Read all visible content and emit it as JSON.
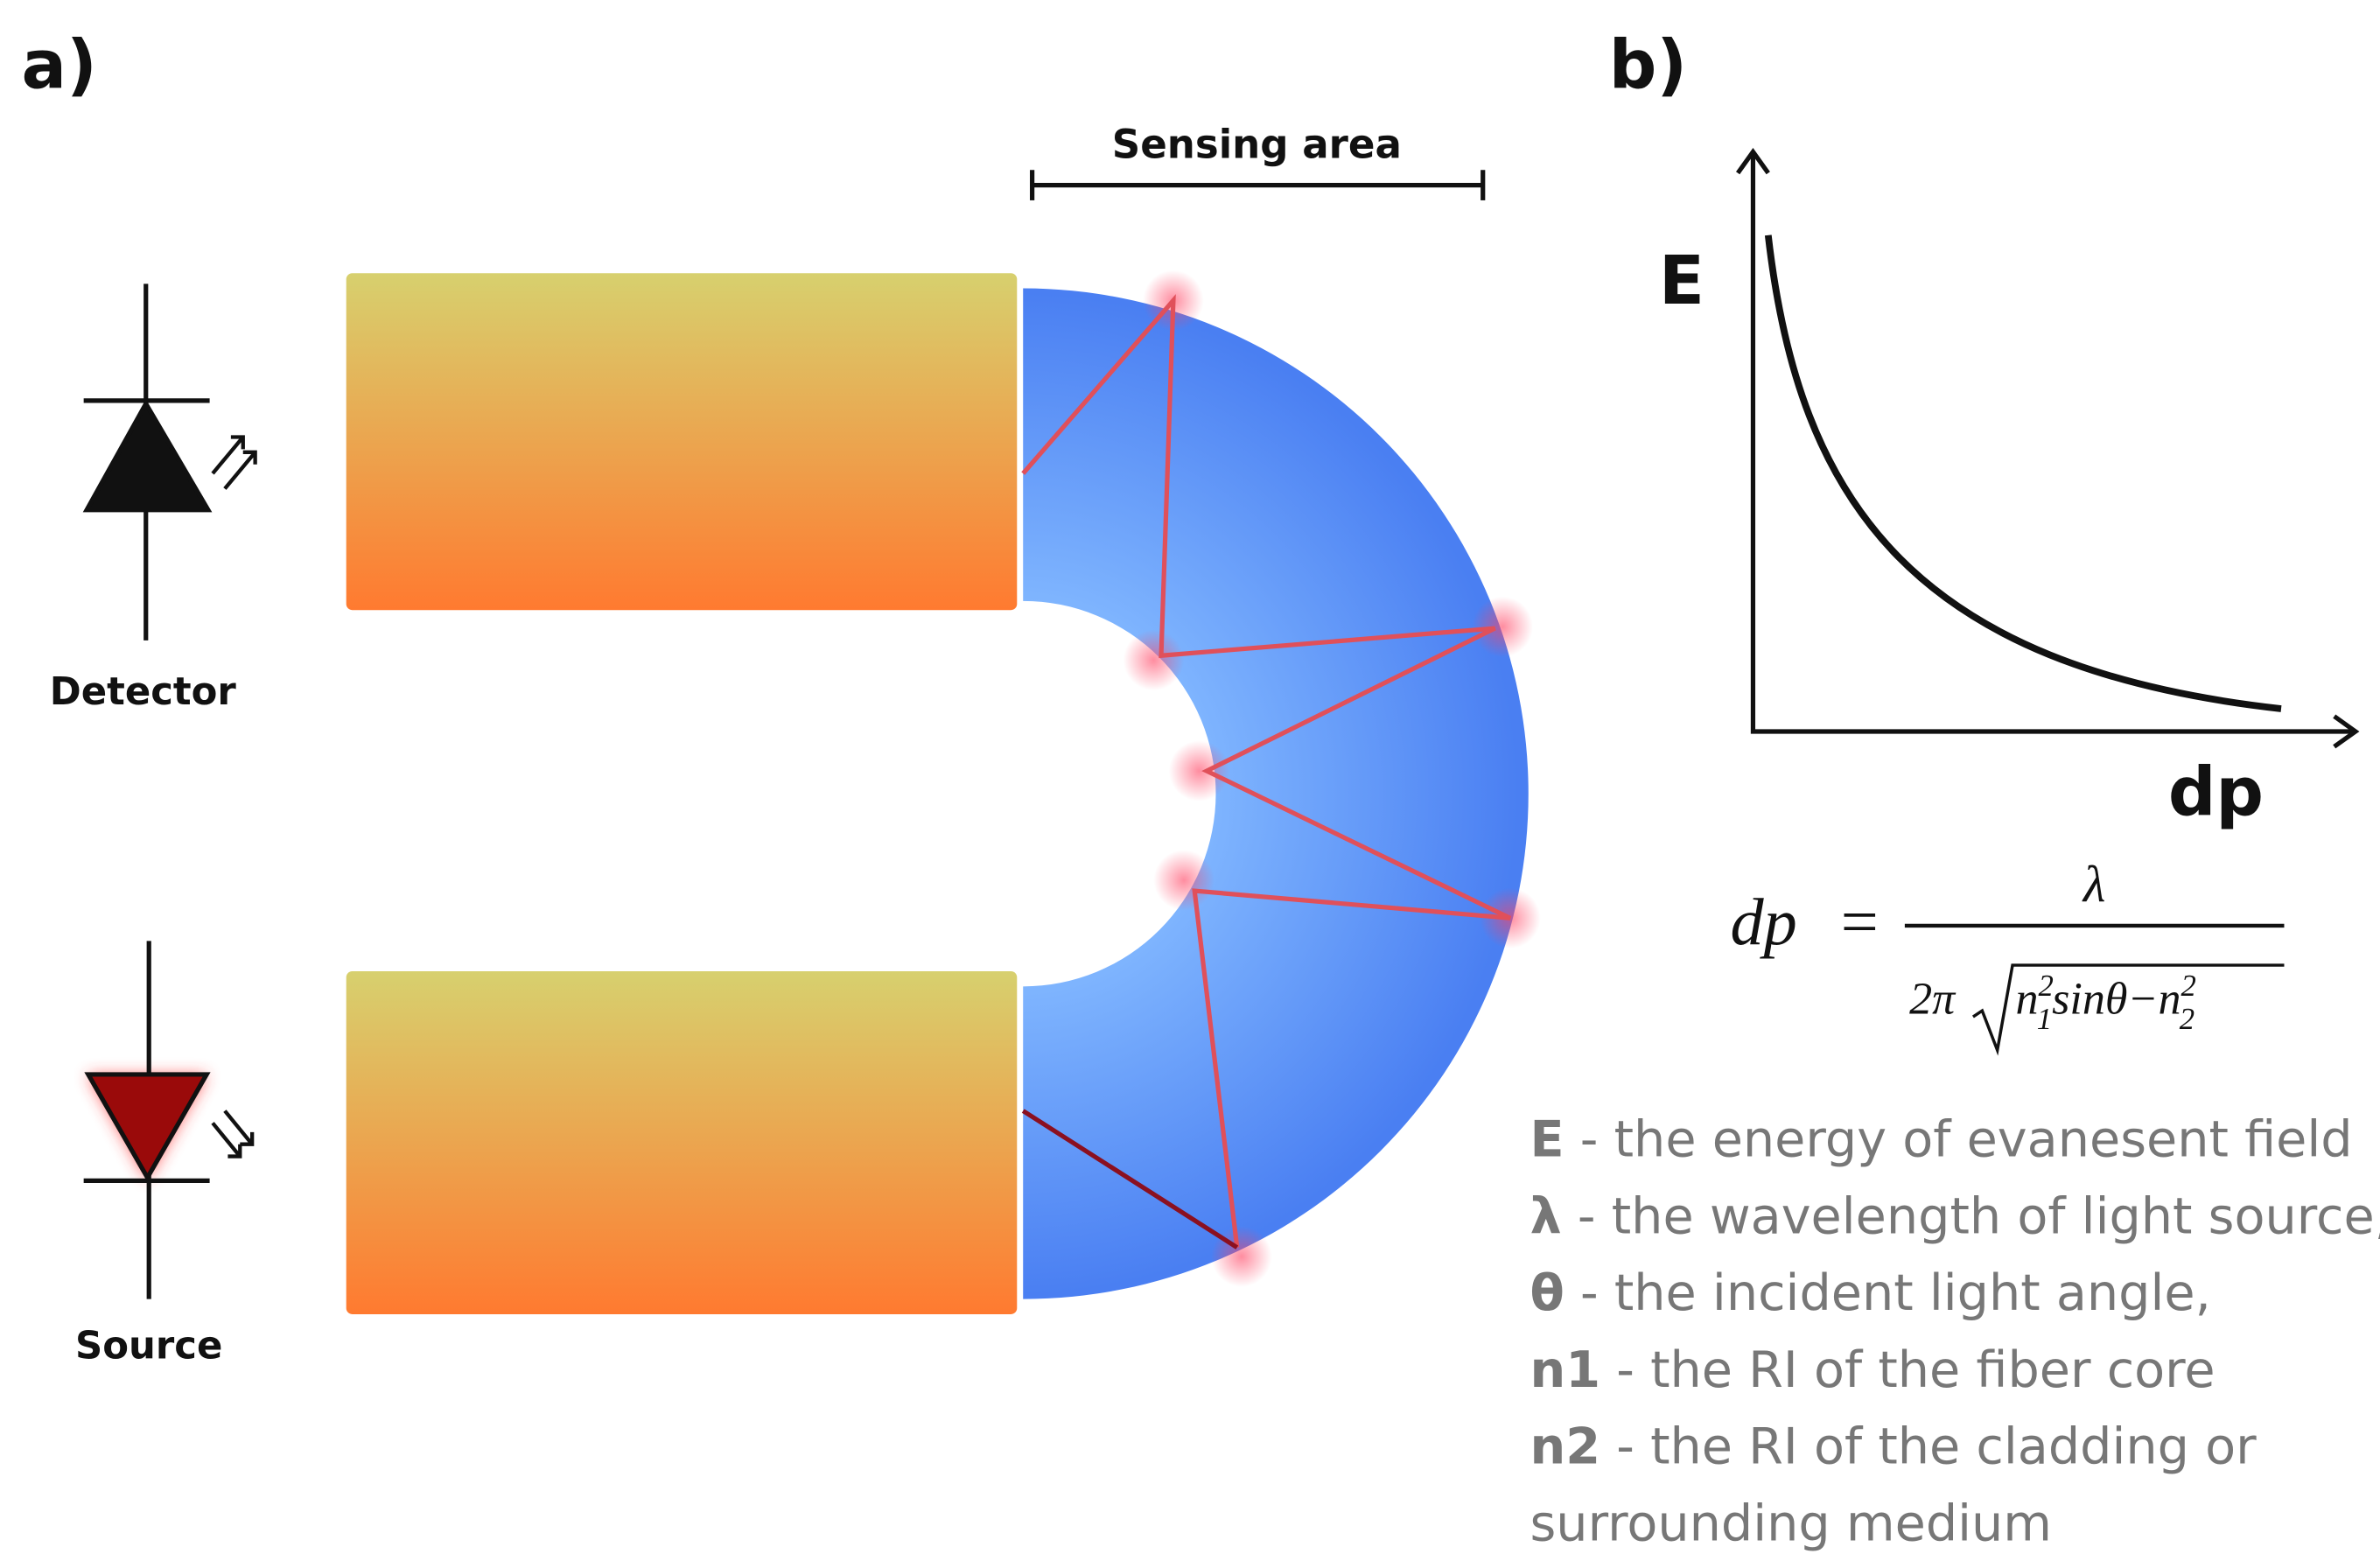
{
  "panel_a": {
    "label": "a)",
    "sensing_area": "Sensing area",
    "detector": "Detector",
    "source": "Source"
  },
  "panel_b": {
    "label": "b)",
    "y_axis": "E",
    "x_axis": "dp",
    "formula": {
      "lhs": "dp",
      "equals": "=",
      "numerator": "λ",
      "coefficient": "2π",
      "n1": "n",
      "n1_sup": "2",
      "n1_sub": "1",
      "middle": "sinθ−",
      "n2": "n",
      "n2_sup": "2",
      "n2_sub": "2"
    },
    "legend": [
      {
        "symbol": "E",
        "text": " - the energy of evanesent field"
      },
      {
        "symbol": "λ",
        "text": " - the wavelength of light source,"
      },
      {
        "symbol": "θ",
        "text": " - the incident light angle,"
      },
      {
        "symbol": "n1",
        "text": " - the RI of the fiber core"
      },
      {
        "symbol": "n2",
        "text": " - the RI of the cladding or",
        "continuation": "surrounding medium"
      }
    ]
  }
}
